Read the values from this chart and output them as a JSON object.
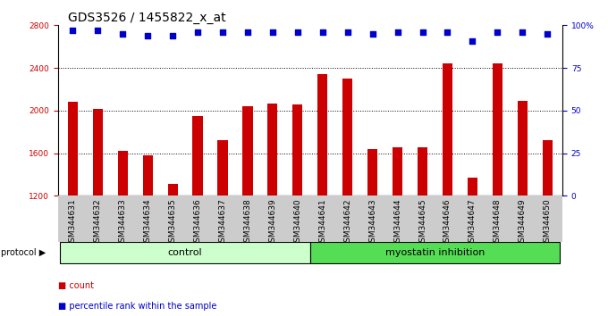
{
  "title": "GDS3526 / 1455822_x_at",
  "samples": [
    "GSM344631",
    "GSM344632",
    "GSM344633",
    "GSM344634",
    "GSM344635",
    "GSM344636",
    "GSM344637",
    "GSM344638",
    "GSM344639",
    "GSM344640",
    "GSM344641",
    "GSM344642",
    "GSM344643",
    "GSM344644",
    "GSM344645",
    "GSM344646",
    "GSM344647",
    "GSM344648",
    "GSM344649",
    "GSM344650"
  ],
  "bar_values": [
    2080,
    2020,
    1620,
    1580,
    1310,
    1950,
    1720,
    2040,
    2070,
    2060,
    2340,
    2300,
    1640,
    1660,
    1660,
    2440,
    1370,
    2440,
    2090,
    1720
  ],
  "percentile_values": [
    97,
    97,
    95,
    94,
    94,
    96,
    96,
    96,
    96,
    96,
    96,
    96,
    95,
    96,
    96,
    96,
    91,
    96,
    96,
    95
  ],
  "bar_color": "#cc0000",
  "dot_color": "#0000cc",
  "ylim_left": [
    1200,
    2800
  ],
  "ylim_right": [
    0,
    100
  ],
  "yticks_left": [
    1200,
    1600,
    2000,
    2400,
    2800
  ],
  "yticks_right": [
    0,
    25,
    50,
    75,
    100
  ],
  "ytick_labels_right": [
    "0",
    "25",
    "50",
    "75",
    "100%"
  ],
  "grid_values": [
    1600,
    2000,
    2400
  ],
  "control_count": 10,
  "myostatin_count": 10,
  "control_label": "control",
  "myostatin_label": "myostatin inhibition",
  "protocol_label": "protocol",
  "legend_bar_label": "count",
  "legend_dot_label": "percentile rank within the sample",
  "control_color": "#ccffcc",
  "myostatin_color": "#55dd55",
  "xtick_bg_color": "#cccccc",
  "title_fontsize": 10,
  "tick_fontsize": 6.5,
  "bar_width": 0.4
}
